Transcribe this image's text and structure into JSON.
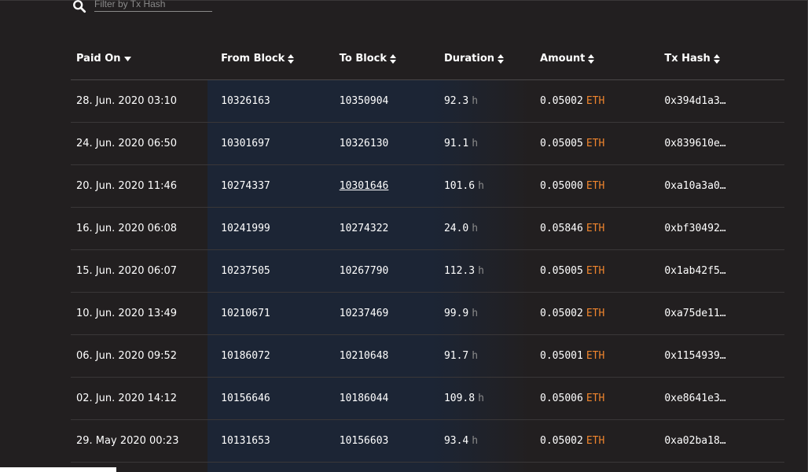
{
  "filter": {
    "placeholder": "Filter by Tx Hash",
    "value": ""
  },
  "columns": {
    "paid_on": "Paid On",
    "from_block": "From Block",
    "to_block": "To Block",
    "duration": "Duration",
    "amount": "Amount",
    "tx_hash": "Tx Hash"
  },
  "sort": {
    "active": "paid_on",
    "direction": "desc",
    "active_icon": "caret-down-icon",
    "inactive_icon": "sort-icon"
  },
  "units": {
    "duration": "h",
    "amount": "ETH"
  },
  "colors": {
    "background": "#221f20",
    "accent": "#f0852d",
    "highlight_column": "#1c2535",
    "unit_muted": "#8a8a8a"
  },
  "rows": [
    {
      "paid_on": "28. Jun. 2020 03:10",
      "from_block": "10326163",
      "to_block": "10350904",
      "duration": "92.3",
      "amount": "0.05002",
      "tx_hash": "0x394d1a3…",
      "to_link": false
    },
    {
      "paid_on": "24. Jun. 2020 06:50",
      "from_block": "10301697",
      "to_block": "10326130",
      "duration": "91.1",
      "amount": "0.05005",
      "tx_hash": "0x839610e…",
      "to_link": false
    },
    {
      "paid_on": "20. Jun. 2020 11:46",
      "from_block": "10274337",
      "to_block": "10301646",
      "duration": "101.6",
      "amount": "0.05000",
      "tx_hash": "0xa10a3a0…",
      "to_link": true
    },
    {
      "paid_on": "16. Jun. 2020 06:08",
      "from_block": "10241999",
      "to_block": "10274322",
      "duration": "24.0",
      "amount": "0.05846",
      "tx_hash": "0xbf30492…",
      "to_link": false
    },
    {
      "paid_on": "15. Jun. 2020 06:07",
      "from_block": "10237505",
      "to_block": "10267790",
      "duration": "112.3",
      "amount": "0.05005",
      "tx_hash": "0x1ab42f5…",
      "to_link": false
    },
    {
      "paid_on": "10. Jun. 2020 13:49",
      "from_block": "10210671",
      "to_block": "10237469",
      "duration": "99.9",
      "amount": "0.05002",
      "tx_hash": "0xa75de11…",
      "to_link": false
    },
    {
      "paid_on": "06. Jun. 2020 09:52",
      "from_block": "10186072",
      "to_block": "10210648",
      "duration": "91.7",
      "amount": "0.05001",
      "tx_hash": "0x1154939…",
      "to_link": false
    },
    {
      "paid_on": "02. Jun. 2020 14:12",
      "from_block": "10156646",
      "to_block": "10186044",
      "duration": "109.8",
      "amount": "0.05006",
      "tx_hash": "0xe8641e3…",
      "to_link": false
    },
    {
      "paid_on": "29. May 2020 00:23",
      "from_block": "10131653",
      "to_block": "10156603",
      "duration": "93.4",
      "amount": "0.05002",
      "tx_hash": "0xa02ba18…",
      "to_link": false
    }
  ]
}
